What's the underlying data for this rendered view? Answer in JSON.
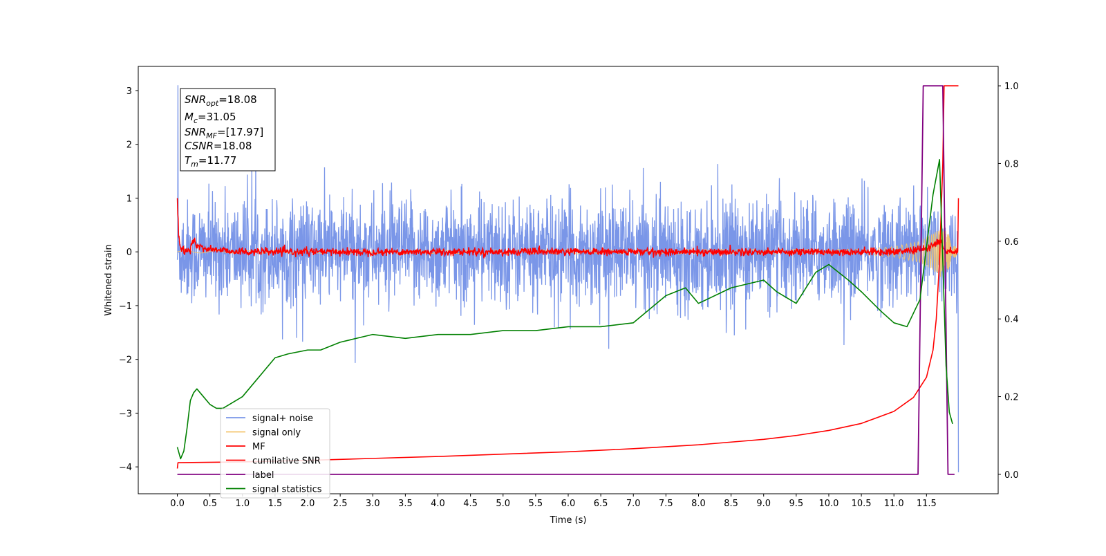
{
  "chart_data": {
    "type": "line",
    "xlabel": "Time (s)",
    "ylabel": "Whitened strain",
    "xlim": [
      -0.6,
      12.6
    ],
    "ylim": [
      -4.5,
      3.45
    ],
    "ylim_right": [
      -0.05,
      1.05
    ],
    "x_ticks": [
      "0.0",
      "0.5",
      "1.0",
      "1.5",
      "2.0",
      "2.5",
      "3.0",
      "3.5",
      "4.0",
      "4.5",
      "5.0",
      "5.5",
      "6.0",
      "6.5",
      "7.0",
      "7.5",
      "8.0",
      "8.5",
      "9.0",
      "9.5",
      "10.0",
      "10.5",
      "11.0",
      "11.5"
    ],
    "y_ticks_left": [
      "3",
      "2",
      "1",
      "0",
      "−1",
      "−2",
      "−3",
      "−4"
    ],
    "y_ticks_right": [
      "1.0",
      "0.8",
      "0.6",
      "0.4",
      "0.2",
      "0.0"
    ],
    "grid": false,
    "legend_position": "lower-left",
    "legend": [
      {
        "label": "signal+ noise",
        "color": "#7a96e8"
      },
      {
        "label": "signal only",
        "color": "#f5c46b"
      },
      {
        "label": "MF",
        "color": "#ff0000"
      },
      {
        "label": "cumilative SNR",
        "color": "#ff0000"
      },
      {
        "label": "label",
        "color": "#800080"
      },
      {
        "label": "signal statistics",
        "color": "#008000"
      }
    ],
    "annotation": {
      "line1": {
        "base": "SNR",
        "sub": "opt",
        "value": "=18.08"
      },
      "line2": {
        "base": "M",
        "sub": "c",
        "value": "=31.05"
      },
      "line3": {
        "base": "SNR",
        "sub": "MF",
        "value": "=[17.97]"
      },
      "line4": {
        "base": "CSNR",
        "sub": "",
        "value": "=18.08"
      },
      "line5": {
        "base": "T",
        "sub": "m",
        "value": "=11.77"
      }
    },
    "series": [
      {
        "name": "signal+ noise",
        "axis": "left",
        "color": "#7a96e8",
        "description_envelope": {
          "x": [
            0.0,
            11.99
          ],
          "typical_range": [
            -1.4,
            1.4
          ],
          "max": 3.1,
          "min": -4.1
        }
      },
      {
        "name": "signal only",
        "axis": "left",
        "color": "#f5c46b",
        "envelope_x": [
          0.0,
          10.5,
          11.0,
          11.4,
          11.6,
          11.75,
          11.85,
          11.99
        ],
        "envelope_amp": [
          0.02,
          0.05,
          0.1,
          0.2,
          0.35,
          0.5,
          0.3,
          0.0
        ]
      },
      {
        "name": "MF",
        "axis": "left",
        "color": "#ff0000",
        "x": [
          0.0,
          0.02,
          0.05,
          0.1,
          0.2,
          0.25,
          0.3,
          0.5,
          1.0,
          11.0,
          11.5,
          11.7,
          11.8,
          11.9,
          11.99,
          11.99
        ],
        "y": [
          1.0,
          0.3,
          0.05,
          0.0,
          0.05,
          0.25,
          0.1,
          0.05,
          0.0,
          0.0,
          0.05,
          0.2,
          0.0,
          0.0,
          0.0,
          1.0
        ]
      },
      {
        "name": "cumilative SNR",
        "axis": "right",
        "color": "#ff0000",
        "x": [
          0.0,
          0.01,
          1.0,
          2.0,
          3.0,
          4.0,
          5.0,
          6.0,
          7.0,
          8.0,
          9.0,
          9.5,
          10.0,
          10.5,
          11.0,
          11.3,
          11.5,
          11.6,
          11.65,
          11.7,
          11.75,
          11.77,
          11.99
        ],
        "y": [
          0.015,
          0.03,
          0.032,
          0.036,
          0.041,
          0.046,
          0.052,
          0.058,
          0.066,
          0.076,
          0.09,
          0.1,
          0.113,
          0.131,
          0.162,
          0.198,
          0.25,
          0.32,
          0.4,
          0.55,
          0.8,
          1.0,
          1.0
        ]
      },
      {
        "name": "label",
        "axis": "right",
        "color": "#800080",
        "x": [
          0.0,
          11.37,
          11.45,
          11.75,
          11.83,
          11.93
        ],
        "y": [
          0.0,
          0.0,
          1.0,
          1.0,
          0.0,
          0.0
        ]
      },
      {
        "name": "signal statistics",
        "axis": "right",
        "color": "#008000",
        "x": [
          0.0,
          0.05,
          0.1,
          0.15,
          0.2,
          0.25,
          0.3,
          0.4,
          0.5,
          0.6,
          0.7,
          0.8,
          1.0,
          1.2,
          1.5,
          1.7,
          2.0,
          2.2,
          2.5,
          3.0,
          3.5,
          4.0,
          4.5,
          5.0,
          5.5,
          6.0,
          6.5,
          7.0,
          7.5,
          7.8,
          8.0,
          8.5,
          9.0,
          9.2,
          9.5,
          9.8,
          10.0,
          10.3,
          10.5,
          10.8,
          11.0,
          11.2,
          11.4,
          11.6,
          11.7,
          11.75,
          11.8,
          11.85,
          11.9
        ],
        "y": [
          0.07,
          0.04,
          0.06,
          0.12,
          0.19,
          0.21,
          0.22,
          0.2,
          0.18,
          0.17,
          0.17,
          0.18,
          0.2,
          0.24,
          0.3,
          0.31,
          0.32,
          0.32,
          0.34,
          0.36,
          0.35,
          0.36,
          0.36,
          0.37,
          0.37,
          0.38,
          0.38,
          0.39,
          0.46,
          0.48,
          0.44,
          0.48,
          0.5,
          0.47,
          0.44,
          0.52,
          0.54,
          0.5,
          0.47,
          0.42,
          0.39,
          0.38,
          0.45,
          0.72,
          0.81,
          0.55,
          0.28,
          0.16,
          0.13
        ]
      }
    ]
  }
}
